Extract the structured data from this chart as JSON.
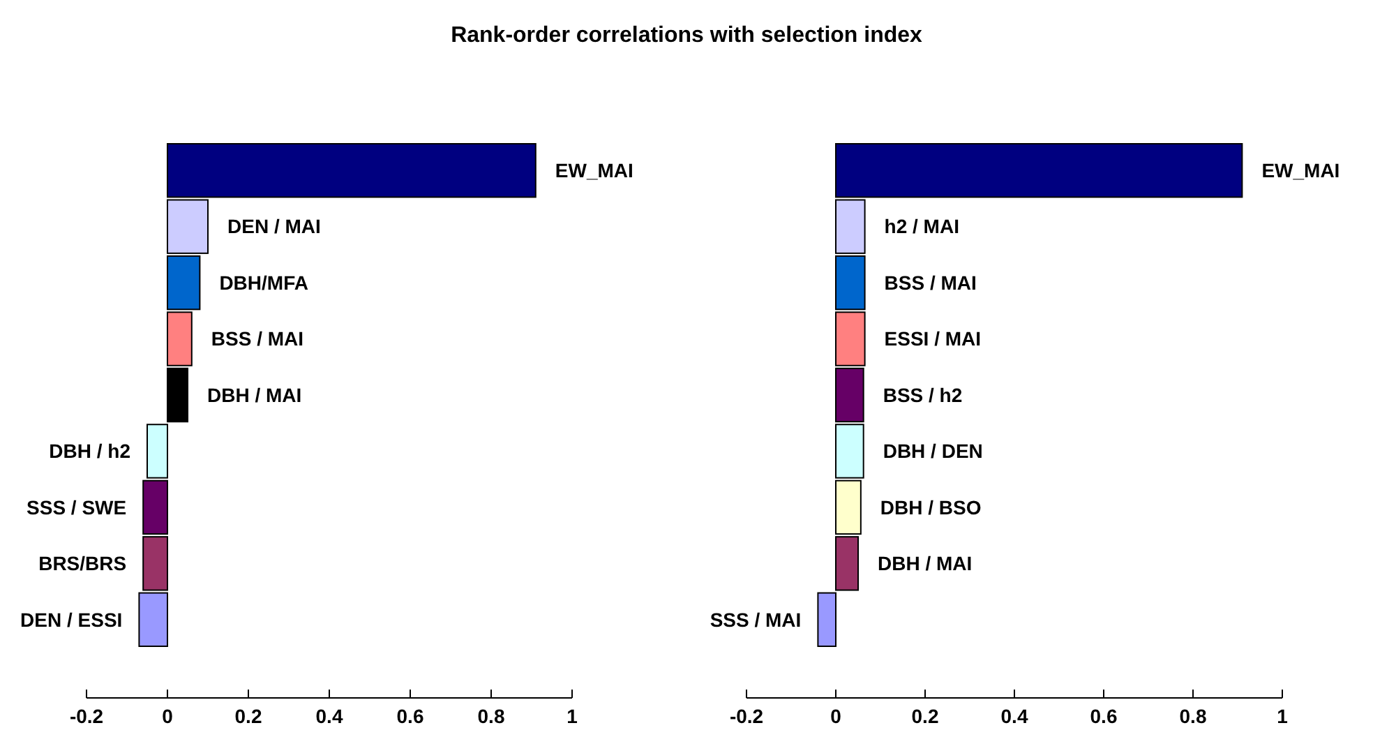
{
  "chart_data": [
    {
      "type": "bar",
      "orientation": "horizontal",
      "title": "Rank-order correlations with selection index",
      "categories": [
        "EW_MAI",
        "DEN / MAI",
        "DBH/MFA",
        "BSS / MAI",
        "DBH / MAI",
        "DBH / h2",
        "SSS / SWE",
        "BRS/BRS",
        "DEN / ESSI"
      ],
      "values": [
        0.91,
        0.1,
        0.08,
        0.06,
        0.05,
        -0.05,
        -0.06,
        -0.06,
        -0.07
      ],
      "colors": [
        "#000080",
        "#ccccff",
        "#0066cc",
        "#ff8080",
        "#000000",
        "#ccffff",
        "#660066",
        "#993366",
        "#9999ff"
      ],
      "xlim": [
        -0.2,
        1
      ],
      "xticks": [
        -0.2,
        0,
        0.2,
        0.4,
        0.6,
        0.8,
        1
      ]
    },
    {
      "type": "bar",
      "orientation": "horizontal",
      "categories": [
        "EW_MAI",
        "h2 / MAI",
        "BSS / MAI",
        "ESSI / MAI",
        "BSS / h2",
        "DBH / DEN",
        "DBH / BSO",
        "DBH / MAI",
        "SSS / MAI"
      ],
      "values": [
        0.91,
        0.065,
        0.065,
        0.065,
        0.062,
        0.062,
        0.056,
        0.05,
        -0.04
      ],
      "colors": [
        "#000080",
        "#ccccff",
        "#0066cc",
        "#ff8080",
        "#660066",
        "#ccffff",
        "#ffffcc",
        "#993366",
        "#9999ff"
      ],
      "xlim": [
        -0.2,
        1
      ],
      "xticks": [
        -0.2,
        0,
        0.2,
        0.4,
        0.6,
        0.8,
        1
      ]
    }
  ]
}
